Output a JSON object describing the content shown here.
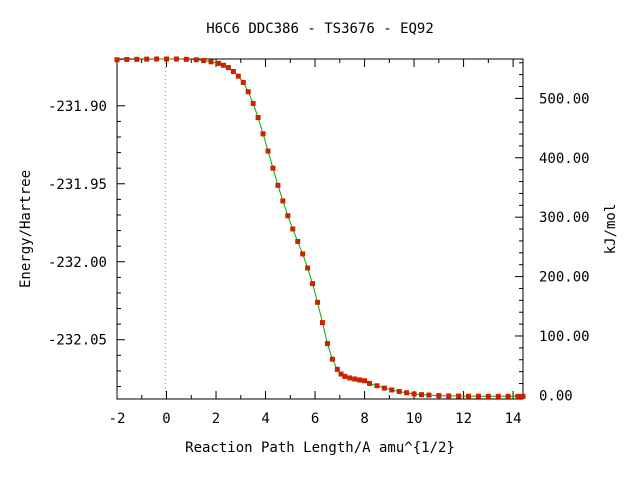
{
  "chart_data": {
    "type": "line",
    "title": "H6C6   DDC386 - TS3676 - EQ92",
    "xlabel": "Reaction Path Length/A amu^{1/2}",
    "ylabel": "Energy/Hartree",
    "y2label": "kJ/mol",
    "xlim": [
      -2.0,
      14.4
    ],
    "ylim": [
      -232.088,
      -231.87
    ],
    "y2lim": [
      -6.1,
      566.3
    ],
    "x_ticks": [
      "-2",
      "0",
      "2",
      "4",
      "6",
      "8",
      "10",
      "12",
      "14"
    ],
    "x_tick_values": [
      -2,
      0,
      2,
      4,
      6,
      8,
      10,
      12,
      14
    ],
    "y_ticks": [
      "-231.90",
      "-231.95",
      "-232.00",
      "-232.05"
    ],
    "y_tick_values": [
      -231.9,
      -231.95,
      -232.0,
      -232.05
    ],
    "y2_ticks": [
      "0.00",
      "100.00",
      "200.00",
      "300.00",
      "400.00",
      "500.00"
    ],
    "y2_tick_values": [
      0,
      100,
      200,
      300,
      400,
      500
    ],
    "ts_marker_x": -0.05,
    "grid": false,
    "colors": {
      "line": "#00aa00",
      "marker": "#cc2200",
      "ts_line": "#888888"
    },
    "series": [
      {
        "x": [
          -2.0,
          -1.6,
          -1.2,
          -0.8,
          -0.4,
          0.0,
          0.4,
          0.8,
          1.2,
          1.5,
          1.8,
          2.1,
          2.3,
          2.5,
          2.7,
          2.9,
          3.1,
          3.3,
          3.5,
          3.7,
          3.9,
          4.1,
          4.3,
          4.5,
          4.7,
          4.9,
          5.1,
          5.3,
          5.5,
          5.7,
          5.9,
          6.1,
          6.3,
          6.5,
          6.7,
          6.9,
          7.05,
          7.2,
          7.4,
          7.6,
          7.8,
          8.0,
          8.2,
          8.5,
          8.8,
          9.1,
          9.4,
          9.7,
          10.0,
          10.3,
          10.6,
          11.0,
          11.4,
          11.8,
          12.2,
          12.6,
          13.0,
          13.4,
          13.8,
          14.2,
          14.4
        ],
        "y": [
          -231.8705,
          -231.8703,
          -231.8702,
          -231.8701,
          -231.87,
          -231.87,
          -231.87,
          -231.8702,
          -231.8705,
          -231.871,
          -231.8718,
          -231.8728,
          -231.874,
          -231.8755,
          -231.878,
          -231.881,
          -231.885,
          -231.891,
          -231.8985,
          -231.9075,
          -231.918,
          -231.929,
          -231.94,
          -231.951,
          -231.961,
          -231.9705,
          -231.979,
          -231.987,
          -231.995,
          -232.004,
          -232.014,
          -232.026,
          -232.039,
          -232.0525,
          -232.0625,
          -232.069,
          -232.072,
          -232.0735,
          -232.0745,
          -232.0752,
          -232.0758,
          -232.0763,
          -232.078,
          -232.0795,
          -232.081,
          -232.0822,
          -232.0832,
          -232.084,
          -232.0848,
          -232.0852,
          -232.0855,
          -232.0858,
          -232.086,
          -232.0861,
          -232.0862,
          -232.0862,
          -232.0863,
          -232.0863,
          -232.0863,
          -232.0863,
          -232.0863
        ]
      }
    ]
  }
}
